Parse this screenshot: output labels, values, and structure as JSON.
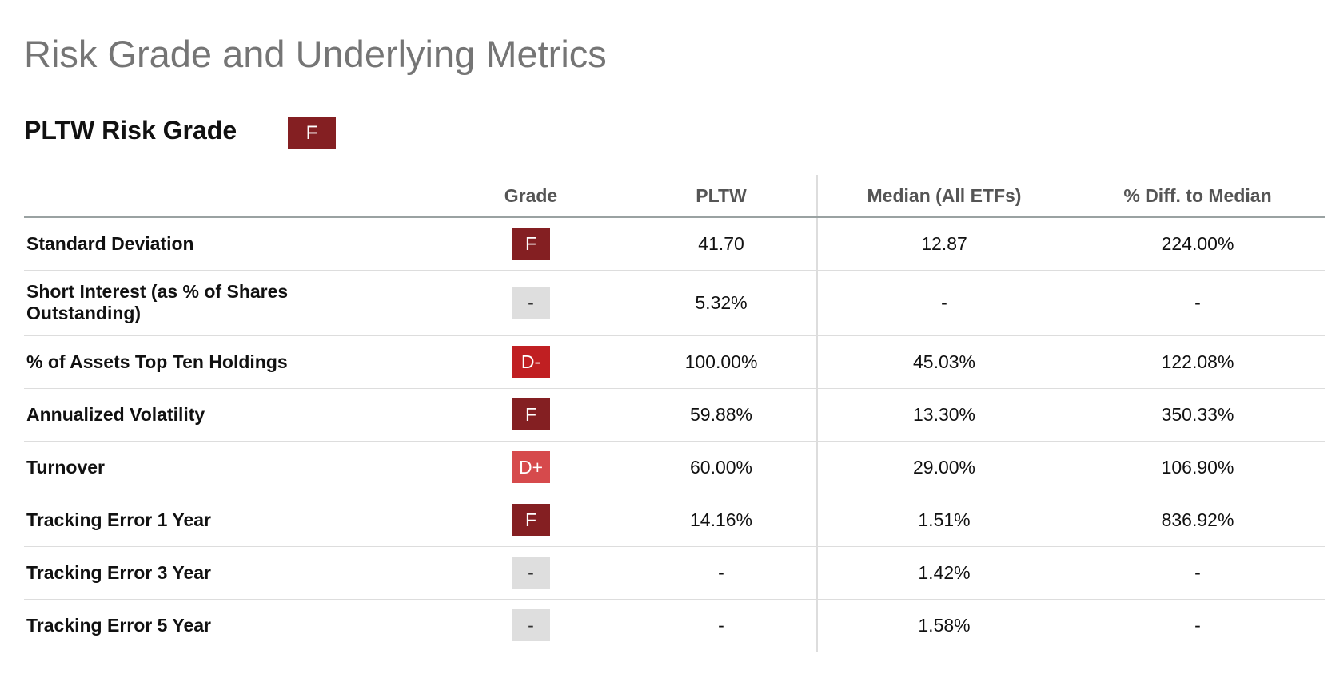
{
  "header": {
    "title": "Risk Grade and Underlying Metrics",
    "grade_label": "PLTW Risk Grade",
    "grade": "F"
  },
  "grade_colors": {
    "F": "#841f22",
    "D-": "#c01f22",
    "D+": "#d64a4c",
    "-": "#dedede"
  },
  "table": {
    "columns": [
      "Grade",
      "PLTW",
      "Median (All ETFs)",
      "% Diff. to Median"
    ],
    "rows": [
      [
        "Standard Deviation",
        "F",
        "41.70",
        "12.87",
        "224.00%"
      ],
      [
        "Short Interest (as % of Shares Outstanding)",
        "-",
        "5.32%",
        "-",
        "-"
      ],
      [
        "% of Assets Top Ten Holdings",
        "D-",
        "100.00%",
        "45.03%",
        "122.08%"
      ],
      [
        "Annualized Volatility",
        "F",
        "59.88%",
        "13.30%",
        "350.33%"
      ],
      [
        "Turnover",
        "D+",
        "60.00%",
        "29.00%",
        "106.90%"
      ],
      [
        "Tracking Error 1 Year",
        "F",
        "14.16%",
        "1.51%",
        "836.92%"
      ],
      [
        "Tracking Error 3 Year",
        "-",
        "-",
        "1.42%",
        "-"
      ],
      [
        "Tracking Error 5 Year",
        "-",
        "-",
        "1.58%",
        "-"
      ]
    ]
  }
}
